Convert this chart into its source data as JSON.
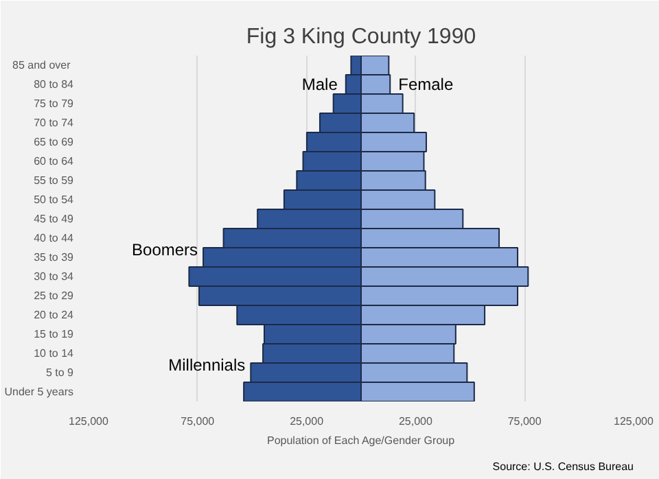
{
  "chart_data": {
    "type": "bar",
    "orientation": "horizontal",
    "title": "Fig 3 King County 1990",
    "xlabel": "Population of Each Age/Gender Group",
    "categories": [
      "85  and over",
      "80 to 84",
      "75 to 79",
      "70 to 74",
      "65 to 69",
      "60 to 64",
      "55 to 59",
      "50 to 54",
      "45 to 49",
      "40 to 44",
      "35 to 39",
      "30 to 34",
      "25 to 29",
      "20 to 24",
      "15 to 19",
      "10 to 14",
      "5 to 9",
      "Under 5 years"
    ],
    "series": [
      {
        "name": "Male",
        "color": "#2f5597",
        "values": [
          -4600,
          -7000,
          -12700,
          -18900,
          -24900,
          -26600,
          -29500,
          -35300,
          -47500,
          -63100,
          -72400,
          -78900,
          -74300,
          -56900,
          -44400,
          -45000,
          -50600,
          -53800
        ]
      },
      {
        "name": "Female",
        "color": "#8faadc",
        "values": [
          12700,
          13300,
          19100,
          24300,
          29900,
          28800,
          29500,
          33800,
          46700,
          63300,
          71800,
          76600,
          71800,
          56700,
          43400,
          42600,
          48600,
          51900
        ]
      }
    ],
    "xlim": [
      -125000,
      125000
    ],
    "xticks": [
      {
        "value": -125000,
        "label": "125,000"
      },
      {
        "value": -75000,
        "label": "75,000"
      },
      {
        "value": -25000,
        "label": "25,000"
      },
      {
        "value": 25000,
        "label": "25,000"
      },
      {
        "value": 75000,
        "label": "75,000"
      },
      {
        "value": 125000,
        "label": "125,000"
      }
    ],
    "grid": "x",
    "stacked": true,
    "annotations": [
      {
        "text": "Boomers",
        "x": -72400,
        "y": "35 to 39"
      },
      {
        "text": "Millennials",
        "x": -50600,
        "y": "5 to 9"
      },
      "Source: U.S. Census Bureau"
    ]
  }
}
